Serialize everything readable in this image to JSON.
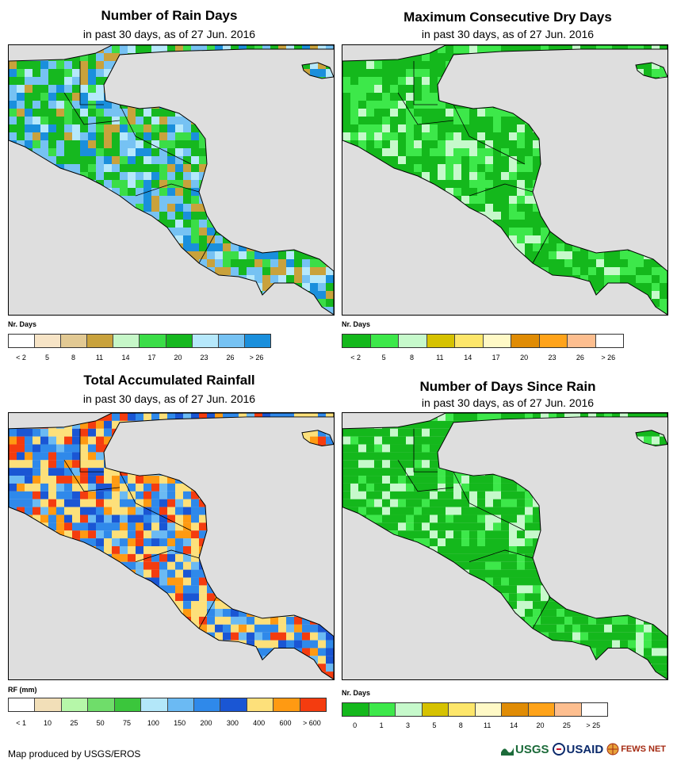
{
  "panels": [
    {
      "id": "rain-days",
      "title": "Number of Rain Days",
      "subtitle": "in past 30 days, as of 27 Jun. 2016",
      "legend_title": "Nr. Days",
      "legend_colors": [
        "#ffffff",
        "#f7e4c6",
        "#e2c993",
        "#c9a23c",
        "#c6f7c8",
        "#3bdd47",
        "#16b81f",
        "#b6e8fb",
        "#76c2f3",
        "#1a8fdc"
      ],
      "legend_labels": [
        "< 2",
        "5",
        "8",
        "11",
        "14",
        "17",
        "20",
        "23",
        "26",
        "> 26"
      ],
      "land_palette": [
        "#16b81f",
        "#3bdd47",
        "#b6e8fb",
        "#76c2f3",
        "#1a8fdc",
        "#16b81f",
        "#76c2f3",
        "#c9a23c"
      ]
    },
    {
      "id": "max-dry-days",
      "title": "Maximum Consecutive Dry Days",
      "subtitle": "in past 30 days, as of 27 Jun. 2016",
      "legend_title": "Nr. Days",
      "legend_colors": [
        "#14b81c",
        "#3de84a",
        "#c6f9cb",
        "#d6c200",
        "#fde66a",
        "#fff9c6",
        "#e08c05",
        "#ffa31a",
        "#fdbe8f",
        "#ffffff"
      ],
      "legend_labels": [
        "< 2",
        "5",
        "8",
        "11",
        "14",
        "17",
        "20",
        "23",
        "26",
        "> 26"
      ],
      "land_palette": [
        "#14b81c",
        "#3de84a",
        "#14b81c",
        "#14b81c",
        "#3de84a",
        "#c6f9cb"
      ]
    },
    {
      "id": "total-rainfall",
      "title": "Total Accumulated Rainfall",
      "subtitle": "in past 30 days, as of 27 Jun. 2016",
      "legend_title": "RF (mm)",
      "legend_colors": [
        "#ffffff",
        "#f2dfb8",
        "#b6f7a9",
        "#6fdd6a",
        "#3bc63c",
        "#b3e7f9",
        "#6bbaf3",
        "#2f89ea",
        "#1a56d4",
        "#fde07a",
        "#ff9a12",
        "#f43c0f"
      ],
      "legend_labels": [
        "< 1",
        "10",
        "25",
        "50",
        "75",
        "100",
        "150",
        "200",
        "300",
        "400",
        "600",
        "> 600"
      ],
      "land_palette": [
        "#2f89ea",
        "#1a56d4",
        "#fde07a",
        "#ff9a12",
        "#2f89ea",
        "#6bbaf3",
        "#fde07a",
        "#f43c0f"
      ]
    },
    {
      "id": "days-since-rain",
      "title": "Number of Days Since Rain",
      "subtitle": "in past 30 days, as of 27 Jun. 2016",
      "legend_title": "Nr. Days",
      "legend_colors": [
        "#14b81c",
        "#3de84a",
        "#c6f9cb",
        "#d6c200",
        "#fde66a",
        "#fff9c6",
        "#e08c05",
        "#ffa31a",
        "#fdbe8f",
        "#ffffff"
      ],
      "legend_labels": [
        "0",
        "1",
        "3",
        "5",
        "8",
        "11",
        "14",
        "20",
        "25",
        "> 25"
      ],
      "land_palette": [
        "#14b81c",
        "#14b81c",
        "#3de84a",
        "#14b81c",
        "#c6f9cb",
        "#14b81c"
      ]
    }
  ],
  "map_colors": {
    "ocean": "#dedede",
    "border": "#000000"
  },
  "footer": "Map produced by USGS/EROS",
  "logos": {
    "usgs": "USGS",
    "usaid": "USAID",
    "fewsnet": "FEWS NET"
  }
}
